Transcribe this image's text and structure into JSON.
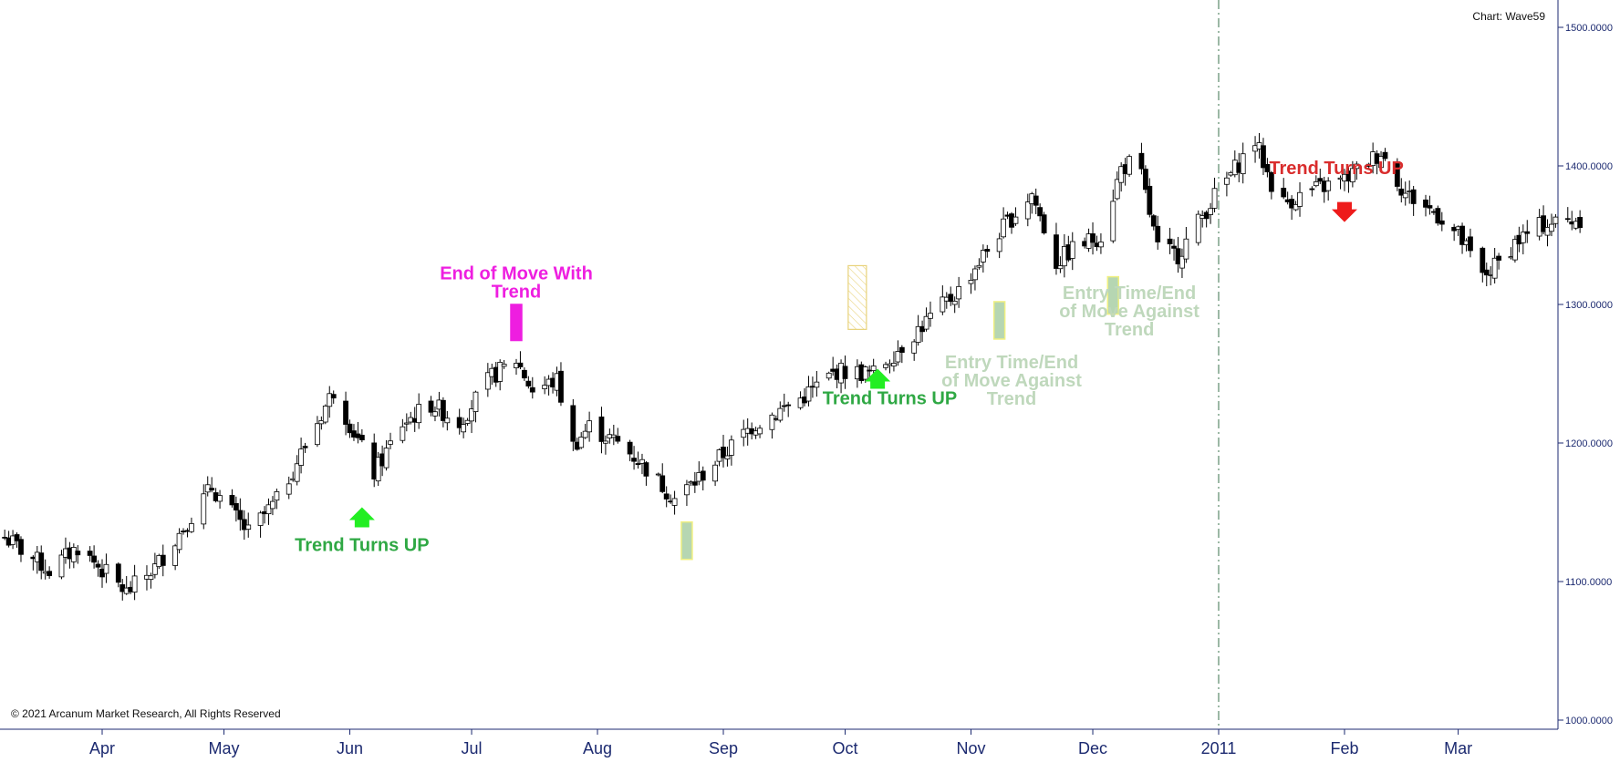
{
  "chart_data": {
    "type": "candlestick",
    "chart_label": "Chart: Wave59",
    "copyright": "© 2021 Arcanum Market Research, All Rights Reserved",
    "ylim": [
      1000,
      1500
    ],
    "y_ticks": [
      "1000.0000",
      "1100.0000",
      "1200.0000",
      "1300.0000",
      "1400.0000",
      "1500.0000"
    ],
    "x_ticks": [
      "Apr",
      "May",
      "Jun",
      "Jul",
      "Aug",
      "Sep",
      "Oct",
      "Nov",
      "Dec",
      "2011",
      "Feb",
      "Mar"
    ],
    "x_tick_dates": [
      "2010-04-01",
      "2010-05-01",
      "2010-06-01",
      "2010-07-01",
      "2010-08-01",
      "2010-09-01",
      "2010-10-01",
      "2010-11-01",
      "2010-12-01",
      "2011-01-01",
      "2011-02-01",
      "2011-03-01"
    ],
    "x_range": [
      "2010-03-08",
      "2011-03-31"
    ],
    "vertical_marker_date": "2011-01-01",
    "price_anchors": [
      {
        "date": "2010-03-08",
        "price": 1132
      },
      {
        "date": "2010-03-19",
        "price": 1108
      },
      {
        "date": "2010-03-26",
        "price": 1125
      },
      {
        "date": "2010-04-07",
        "price": 1092
      },
      {
        "date": "2010-04-14",
        "price": 1110
      },
      {
        "date": "2010-04-28",
        "price": 1168
      },
      {
        "date": "2010-05-07",
        "price": 1135
      },
      {
        "date": "2010-05-14",
        "price": 1158
      },
      {
        "date": "2010-05-28",
        "price": 1238
      },
      {
        "date": "2010-06-07",
        "price": 1178
      },
      {
        "date": "2010-06-14",
        "price": 1214
      },
      {
        "date": "2010-06-21",
        "price": 1228
      },
      {
        "date": "2010-06-28",
        "price": 1215
      },
      {
        "date": "2010-07-06",
        "price": 1248
      },
      {
        "date": "2010-07-12",
        "price": 1260
      },
      {
        "date": "2010-07-16",
        "price": 1238
      },
      {
        "date": "2010-07-22",
        "price": 1245
      },
      {
        "date": "2010-07-26",
        "price": 1198
      },
      {
        "date": "2010-07-30",
        "price": 1212
      },
      {
        "date": "2010-08-06",
        "price": 1200
      },
      {
        "date": "2010-08-11",
        "price": 1188
      },
      {
        "date": "2010-08-20",
        "price": 1160
      },
      {
        "date": "2010-08-25",
        "price": 1172
      },
      {
        "date": "2010-09-08",
        "price": 1212
      },
      {
        "date": "2010-09-20",
        "price": 1232
      },
      {
        "date": "2010-09-29",
        "price": 1252
      },
      {
        "date": "2010-10-08",
        "price": 1250
      },
      {
        "date": "2010-10-19",
        "price": 1282
      },
      {
        "date": "2010-10-29",
        "price": 1310
      },
      {
        "date": "2010-11-08",
        "price": 1352
      },
      {
        "date": "2010-11-16",
        "price": 1380
      },
      {
        "date": "2010-11-22",
        "price": 1330
      },
      {
        "date": "2010-11-26",
        "price": 1340
      },
      {
        "date": "2010-12-03",
        "price": 1350
      },
      {
        "date": "2010-12-08",
        "price": 1398
      },
      {
        "date": "2010-12-12",
        "price": 1405
      },
      {
        "date": "2010-12-17",
        "price": 1340
      },
      {
        "date": "2010-12-22",
        "price": 1336
      },
      {
        "date": "2010-12-31",
        "price": 1378
      },
      {
        "date": "2011-01-10",
        "price": 1418
      },
      {
        "date": "2011-01-16",
        "price": 1372
      },
      {
        "date": "2011-01-24",
        "price": 1382
      },
      {
        "date": "2011-02-01",
        "price": 1390
      },
      {
        "date": "2011-02-10",
        "price": 1410
      },
      {
        "date": "2011-02-16",
        "price": 1380
      },
      {
        "date": "2011-02-24",
        "price": 1365
      },
      {
        "date": "2011-03-01",
        "price": 1350
      },
      {
        "date": "2011-03-07",
        "price": 1320
      },
      {
        "date": "2011-03-11",
        "price": 1330
      },
      {
        "date": "2011-03-15",
        "price": 1345
      },
      {
        "date": "2011-03-22",
        "price": 1358
      },
      {
        "date": "2011-03-31",
        "price": 1362
      }
    ],
    "annotations": [
      {
        "kind": "text",
        "text": "End of Move With\nTrend",
        "date": "2010-07-12",
        "price": 1318,
        "color": "#ee1ee0"
      },
      {
        "kind": "bar",
        "date": "2010-07-12",
        "price_from": 1300,
        "price_to": 1274,
        "fill": "#ee1ee0",
        "stroke": "#ee1ee0"
      },
      {
        "kind": "arrow_up",
        "date": "2010-06-04",
        "price": 1147,
        "color": "#22ee22"
      },
      {
        "kind": "text",
        "text": "Trend Turns UP",
        "date": "2010-06-04",
        "price": 1122,
        "color": "#2fa844"
      },
      {
        "kind": "bar",
        "date": "2010-08-23",
        "price_from": 1143,
        "price_to": 1116,
        "fill": "#b6d6b2",
        "stroke": "#f0f080"
      },
      {
        "kind": "hatch",
        "date": "2010-10-04",
        "price_from": 1328,
        "price_to": 1282
      },
      {
        "kind": "arrow_up",
        "date": "2010-10-09",
        "price": 1247,
        "color": "#22ee22"
      },
      {
        "kind": "text",
        "text": "Trend Turns UP",
        "date": "2010-10-12",
        "price": 1228,
        "color": "#2fa844"
      },
      {
        "kind": "bar",
        "date": "2010-11-08",
        "price_from": 1302,
        "price_to": 1275,
        "fill": "#b6d6b2",
        "stroke": "#f0f080"
      },
      {
        "kind": "text",
        "text": "Entry Time/End\nof Move Against\nTrend",
        "date": "2010-11-11",
        "price": 1254,
        "color": "#bfd8bc"
      },
      {
        "kind": "bar",
        "date": "2010-12-06",
        "price_from": 1320,
        "price_to": 1293,
        "fill": "#b6d6b2",
        "stroke": "#f0f080"
      },
      {
        "kind": "text",
        "text": "Entry Time/End\nof Move Against\nTrend",
        "date": "2010-12-10",
        "price": 1304,
        "color": "#bfd8bc"
      },
      {
        "kind": "text",
        "text": "Trend Turns UP",
        "date": "2011-01-30",
        "price": 1394,
        "color": "#d92d2d"
      },
      {
        "kind": "arrow_down",
        "date": "2011-02-01",
        "price": 1366,
        "color": "#ee1b1b"
      }
    ]
  }
}
